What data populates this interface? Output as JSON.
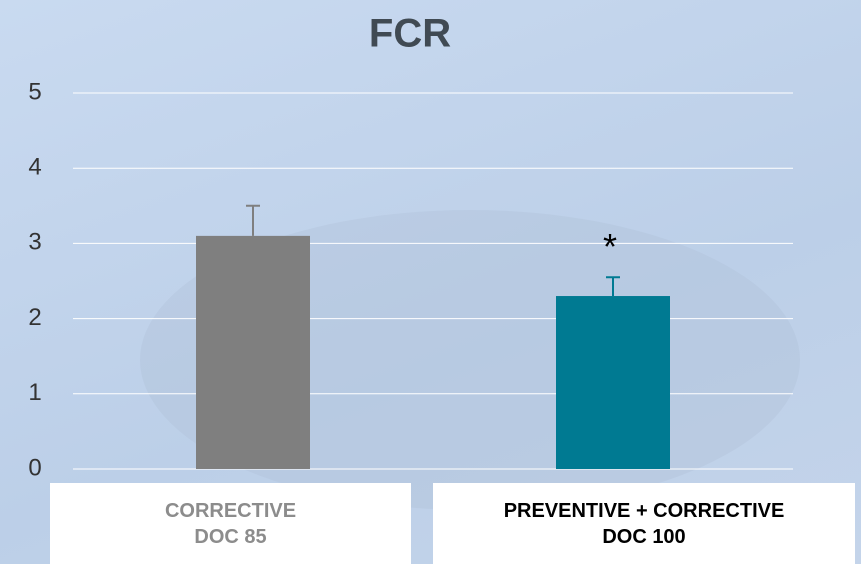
{
  "chart_data": {
    "type": "bar",
    "title": "FCR",
    "categories": [
      "CORRECTIVE\nDOC 85",
      "PREVENTIVE + CORRECTIVE\nDOC 100"
    ],
    "values": [
      3.1,
      2.3
    ],
    "errors": [
      0.4,
      0.25
    ],
    "colors": [
      "#7f7f7f",
      "#007a92"
    ],
    "label_colors": [
      "#8c8c8c",
      "#000000"
    ],
    "annotations": [
      "",
      "*"
    ],
    "ylim": [
      0,
      5
    ],
    "yticks": [
      0,
      1,
      2,
      3,
      4,
      5
    ],
    "grid": true
  }
}
